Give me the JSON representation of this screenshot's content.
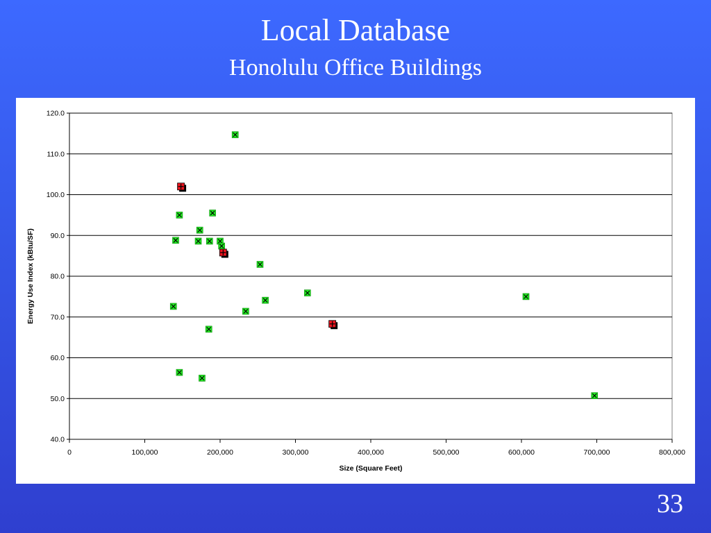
{
  "slide": {
    "title": "Local Database",
    "subtitle": "Honolulu Office Buildings",
    "page_number": "33"
  },
  "colors": {
    "background": "#3557e8",
    "panel": "#ffffff",
    "series_green": "#22e622",
    "series_red": "#e8141e",
    "marker_glyph": "#000000"
  },
  "chart_data": {
    "type": "scatter",
    "xlabel": "Size (Square Feet)",
    "ylabel": "Energy Use Index (kBtu/SF)",
    "xlim": [
      0,
      800000
    ],
    "ylim": [
      40,
      120
    ],
    "x_ticks": [
      0,
      100000,
      200000,
      300000,
      400000,
      500000,
      600000,
      700000,
      800000
    ],
    "x_tick_labels": [
      "0",
      "100,000",
      "200,000",
      "300,000",
      "400,000",
      "500,000",
      "600,000",
      "700,000",
      "800,000"
    ],
    "y_ticks": [
      40,
      50,
      60,
      70,
      80,
      90,
      100,
      110,
      120
    ],
    "y_tick_labels": [
      "40.0",
      "50.0",
      "60.0",
      "70.0",
      "80.0",
      "90.0",
      "100.0",
      "110.0",
      "120.0"
    ],
    "grid": "horizontal",
    "legend": "none",
    "series": [
      {
        "marker": "green-square-x",
        "points": [
          {
            "x": 220000,
            "y": 114.7
          },
          {
            "x": 190000,
            "y": 95.5
          },
          {
            "x": 146000,
            "y": 95.0
          },
          {
            "x": 173000,
            "y": 91.3
          },
          {
            "x": 141000,
            "y": 88.8
          },
          {
            "x": 171000,
            "y": 88.6
          },
          {
            "x": 186000,
            "y": 88.6
          },
          {
            "x": 200000,
            "y": 88.6
          },
          {
            "x": 202000,
            "y": 87.4
          },
          {
            "x": 253000,
            "y": 82.9
          },
          {
            "x": 316000,
            "y": 75.9
          },
          {
            "x": 260000,
            "y": 74.1
          },
          {
            "x": 606000,
            "y": 75.0
          },
          {
            "x": 138000,
            "y": 72.6
          },
          {
            "x": 234000,
            "y": 71.4
          },
          {
            "x": 185000,
            "y": 67.0
          },
          {
            "x": 146000,
            "y": 56.4
          },
          {
            "x": 176000,
            "y": 55.0
          },
          {
            "x": 697000,
            "y": 50.7
          }
        ]
      },
      {
        "marker": "red-square-plus",
        "points": [
          {
            "x": 148000,
            "y": 102.0
          },
          {
            "x": 204000,
            "y": 85.8
          },
          {
            "x": 349000,
            "y": 68.3
          }
        ]
      }
    ]
  }
}
